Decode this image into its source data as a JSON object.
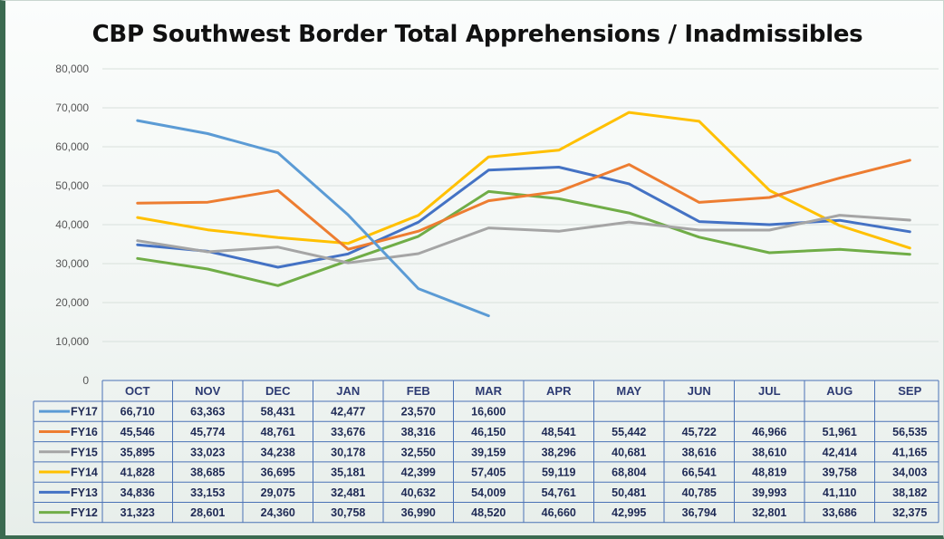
{
  "chart_data": {
    "type": "line",
    "title": "CBP Southwest Border Total Apprehensions / Inadmissibles",
    "categories": [
      "OCT",
      "NOV",
      "DEC",
      "JAN",
      "FEB",
      "MAR",
      "APR",
      "MAY",
      "JUN",
      "JUL",
      "AUG",
      "SEP"
    ],
    "ylim": [
      0,
      80000
    ],
    "yticks": [
      0,
      10000,
      20000,
      30000,
      40000,
      50000,
      60000,
      70000,
      80000
    ],
    "ytick_labels": [
      "0",
      "10,000",
      "20,000",
      "30,000",
      "40,000",
      "50,000",
      "60,000",
      "70,000",
      "80,000"
    ],
    "grid": true,
    "legend": "data-table-below",
    "series": [
      {
        "name": "FY17",
        "color": "#5b9bd5",
        "values": [
          66710,
          63363,
          58431,
          42477,
          23570,
          16600,
          null,
          null,
          null,
          null,
          null,
          null
        ],
        "labels": [
          "66,710",
          "63,363",
          "58,431",
          "42,477",
          "23,570",
          "16,600",
          "",
          "",
          "",
          "",
          "",
          ""
        ]
      },
      {
        "name": "FY16",
        "color": "#ed7d31",
        "values": [
          45546,
          45774,
          48761,
          33676,
          38316,
          46150,
          48541,
          55442,
          45722,
          46966,
          51961,
          56535
        ],
        "labels": [
          "45,546",
          "45,774",
          "48,761",
          "33,676",
          "38,316",
          "46,150",
          "48,541",
          "55,442",
          "45,722",
          "46,966",
          "51,961",
          "56,535"
        ]
      },
      {
        "name": "FY15",
        "color": "#a5a5a5",
        "values": [
          35895,
          33023,
          34238,
          30178,
          32550,
          39159,
          38296,
          40681,
          38616,
          38610,
          42414,
          41165
        ],
        "labels": [
          "35,895",
          "33,023",
          "34,238",
          "30,178",
          "32,550",
          "39,159",
          "38,296",
          "40,681",
          "38,616",
          "38,610",
          "42,414",
          "41,165"
        ]
      },
      {
        "name": "FY14",
        "color": "#ffc000",
        "values": [
          41828,
          38685,
          36695,
          35181,
          42399,
          57405,
          59119,
          68804,
          66541,
          48819,
          39758,
          34003
        ],
        "labels": [
          "41,828",
          "38,685",
          "36,695",
          "35,181",
          "42,399",
          "57,405",
          "59,119",
          "68,804",
          "66,541",
          "48,819",
          "39,758",
          "34,003"
        ]
      },
      {
        "name": "FY13",
        "color": "#4472c4",
        "values": [
          34836,
          33153,
          29075,
          32481,
          40632,
          54009,
          54761,
          50481,
          40785,
          39993,
          41110,
          38182
        ],
        "labels": [
          "34,836",
          "33,153",
          "29,075",
          "32,481",
          "40,632",
          "54,009",
          "54,761",
          "50,481",
          "40,785",
          "39,993",
          "41,110",
          "38,182"
        ]
      },
      {
        "name": "FY12",
        "color": "#70ad47",
        "values": [
          31323,
          28601,
          24360,
          30758,
          36990,
          48520,
          46660,
          42995,
          36794,
          32801,
          33686,
          32375
        ],
        "labels": [
          "31,323",
          "28,601",
          "24,360",
          "30,758",
          "36,990",
          "48,520",
          "46,660",
          "42,995",
          "36,794",
          "32,801",
          "33,686",
          "32,375"
        ]
      }
    ]
  }
}
